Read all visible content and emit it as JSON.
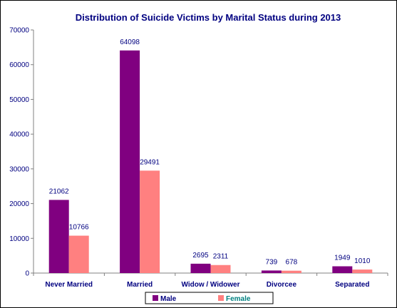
{
  "chart_data": {
    "type": "bar",
    "title": "Distribution of Suicide Victims by Marital Status during 2013",
    "xlabel": "",
    "ylabel": "",
    "categories": [
      "Never Married",
      "Married",
      "Widow / Widower",
      "Divorcee",
      "Separated"
    ],
    "series": [
      {
        "name": "Male",
        "values": [
          21062,
          64098,
          2695,
          739,
          1949
        ],
        "color": "#800080"
      },
      {
        "name": "Female",
        "values": [
          10766,
          29491,
          2311,
          678,
          1010
        ],
        "color": "#ff8080"
      }
    ],
    "ylim": [
      0,
      70000
    ],
    "yticks": [
      "0",
      "10000",
      "20000",
      "30000",
      "40000",
      "50000",
      "60000",
      "70000"
    ],
    "grid": false,
    "legend_position": "bottom",
    "colors": {
      "title": "#000080",
      "axis_text": "#000080",
      "axis_line": "#808080",
      "male_legend_text": "#000080",
      "female_legend_text": "#008080"
    }
  }
}
